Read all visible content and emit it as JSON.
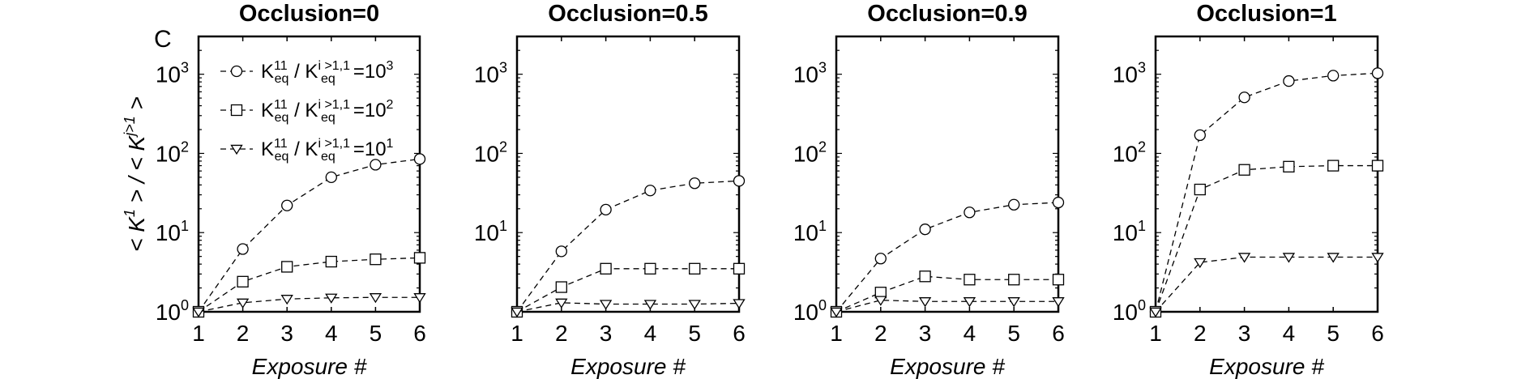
{
  "panel_letter": "C",
  "ylabel": "< K¹ > / < Kʲ˃¹ >",
  "ylabel_parts": {
    "left": "< K",
    "sup1": "1",
    "mid": " > / < K",
    "sup2": "j>1",
    "right": " >"
  },
  "legend": [
    {
      "series": "10^3",
      "pre": "K",
      "sup_a": "11",
      "sub_a": "eq",
      "slash": " / K",
      "sup_b": "i >1,1",
      "sub_b": "eq",
      "eq": "=10",
      "exp": "3"
    },
    {
      "series": "10^2",
      "pre": "K",
      "sup_a": "11",
      "sub_a": "eq",
      "slash": " / K",
      "sup_b": "i >1,1",
      "sub_b": "eq",
      "eq": "=10",
      "exp": "2"
    },
    {
      "series": "10^1",
      "pre": "K",
      "sup_a": "11",
      "sub_a": "eq",
      "slash": " / K",
      "sup_b": "i >1,1",
      "sub_b": "eq",
      "eq": "=10",
      "exp": "1"
    }
  ],
  "chart_data": [
    {
      "type": "line",
      "title": "Occlusion=0",
      "xlabel": "Exposure #",
      "ylabel": "< K^1 > / < K^{j>1} >",
      "yscale": "log",
      "xlim": [
        1,
        6
      ],
      "ylim": [
        1,
        3000
      ],
      "x": [
        1,
        2,
        3,
        4,
        5,
        6
      ],
      "xticks": [
        "1",
        "2",
        "3",
        "4",
        "5",
        "6"
      ],
      "yticks": [
        {
          "base": "10",
          "exp": "0",
          "value": 1
        },
        {
          "base": "10",
          "exp": "1",
          "value": 10
        },
        {
          "base": "10",
          "exp": "2",
          "value": 100
        },
        {
          "base": "10",
          "exp": "3",
          "value": 1000
        }
      ],
      "legend_position": "top-left",
      "series": [
        {
          "name": "K_eq^11 / K_eq^{i>1,1}=10^3",
          "marker": "circle",
          "values": [
            1,
            6.2,
            22,
            50,
            72,
            85
          ]
        },
        {
          "name": "K_eq^11 / K_eq^{i>1,1}=10^2",
          "marker": "square",
          "values": [
            1,
            2.4,
            3.7,
            4.3,
            4.6,
            4.8
          ]
        },
        {
          "name": "K_eq^11 / K_eq^{i>1,1}=10^1",
          "marker": "triangle",
          "values": [
            1,
            1.3,
            1.45,
            1.5,
            1.52,
            1.52
          ]
        }
      ]
    },
    {
      "type": "line",
      "title": "Occlusion=0.5",
      "xlabel": "",
      "yscale": "log",
      "xlim": [
        1,
        6
      ],
      "ylim": [
        1,
        3000
      ],
      "x": [
        1,
        2,
        3,
        4,
        5,
        6
      ],
      "xticks": [
        "1",
        "2",
        "3",
        "4",
        "5",
        "6"
      ],
      "yticks": [
        {
          "base": "10",
          "exp": "1",
          "value": 10
        },
        {
          "base": "10",
          "exp": "2",
          "value": 100
        },
        {
          "base": "10",
          "exp": "3",
          "value": 1000
        }
      ],
      "series": [
        {
          "name": "K_eq^11 / K_eq^{i>1,1}=10^3",
          "marker": "circle",
          "values": [
            1,
            5.8,
            19.5,
            34,
            42,
            45
          ]
        },
        {
          "name": "K_eq^11 / K_eq^{i>1,1}=10^2",
          "marker": "square",
          "values": [
            1,
            2.05,
            3.5,
            3.5,
            3.5,
            3.5
          ]
        },
        {
          "name": "K_eq^11 / K_eq^{i>1,1}=10^1",
          "marker": "triangle",
          "values": [
            1,
            1.3,
            1.25,
            1.25,
            1.25,
            1.28
          ]
        }
      ]
    },
    {
      "type": "line",
      "title": "Occlusion=0.9",
      "xlabel": "",
      "yscale": "log",
      "xlim": [
        1,
        6
      ],
      "ylim": [
        1,
        3000
      ],
      "x": [
        1,
        2,
        3,
        4,
        5,
        6
      ],
      "xticks": [
        "1",
        "2",
        "3",
        "4",
        "5",
        "6"
      ],
      "yticks": [
        {
          "base": "10",
          "exp": "0",
          "value": 1
        },
        {
          "base": "10",
          "exp": "1",
          "value": 10
        },
        {
          "base": "10",
          "exp": "2",
          "value": 100
        },
        {
          "base": "10",
          "exp": "3",
          "value": 1000
        }
      ],
      "series": [
        {
          "name": "K_eq^11 / K_eq^{i>1,1}=10^3",
          "marker": "circle",
          "values": [
            1,
            4.7,
            11,
            18,
            22.5,
            24
          ]
        },
        {
          "name": "K_eq^11 / K_eq^{i>1,1}=10^2",
          "marker": "square",
          "values": [
            1,
            1.75,
            2.8,
            2.55,
            2.55,
            2.55
          ]
        },
        {
          "name": "K_eq^11 / K_eq^{i>1,1}=10^1",
          "marker": "triangle",
          "values": [
            1,
            1.4,
            1.35,
            1.35,
            1.35,
            1.35
          ]
        }
      ]
    },
    {
      "type": "line",
      "title": "Occlusion=1",
      "xlabel": "",
      "yscale": "log",
      "xlim": [
        1,
        6
      ],
      "ylim": [
        1,
        3000
      ],
      "x": [
        1,
        2,
        3,
        4,
        5,
        6
      ],
      "xticks": [
        "1",
        "2",
        "3",
        "4",
        "5",
        "6"
      ],
      "yticks": [
        {
          "base": "10",
          "exp": "0",
          "value": 1
        },
        {
          "base": "10",
          "exp": "1",
          "value": 10
        },
        {
          "base": "10",
          "exp": "2",
          "value": 100
        },
        {
          "base": "10",
          "exp": "3",
          "value": 1000
        }
      ],
      "series": [
        {
          "name": "K_eq^11 / K_eq^{i>1,1}=10^3",
          "marker": "circle",
          "values": [
            1,
            170,
            510,
            820,
            960,
            1030
          ]
        },
        {
          "name": "K_eq^11 / K_eq^{i>1,1}=10^2",
          "marker": "square",
          "values": [
            1,
            35,
            62,
            68,
            70,
            70
          ]
        },
        {
          "name": "K_eq^11 / K_eq^{i>1,1}=10^1",
          "marker": "triangle",
          "values": [
            1,
            4.2,
            4.9,
            4.9,
            4.9,
            4.9
          ]
        }
      ]
    }
  ],
  "xlabels_all": [
    "Exposure #",
    "Exposure #",
    "Exposure #",
    "Exposure #"
  ]
}
